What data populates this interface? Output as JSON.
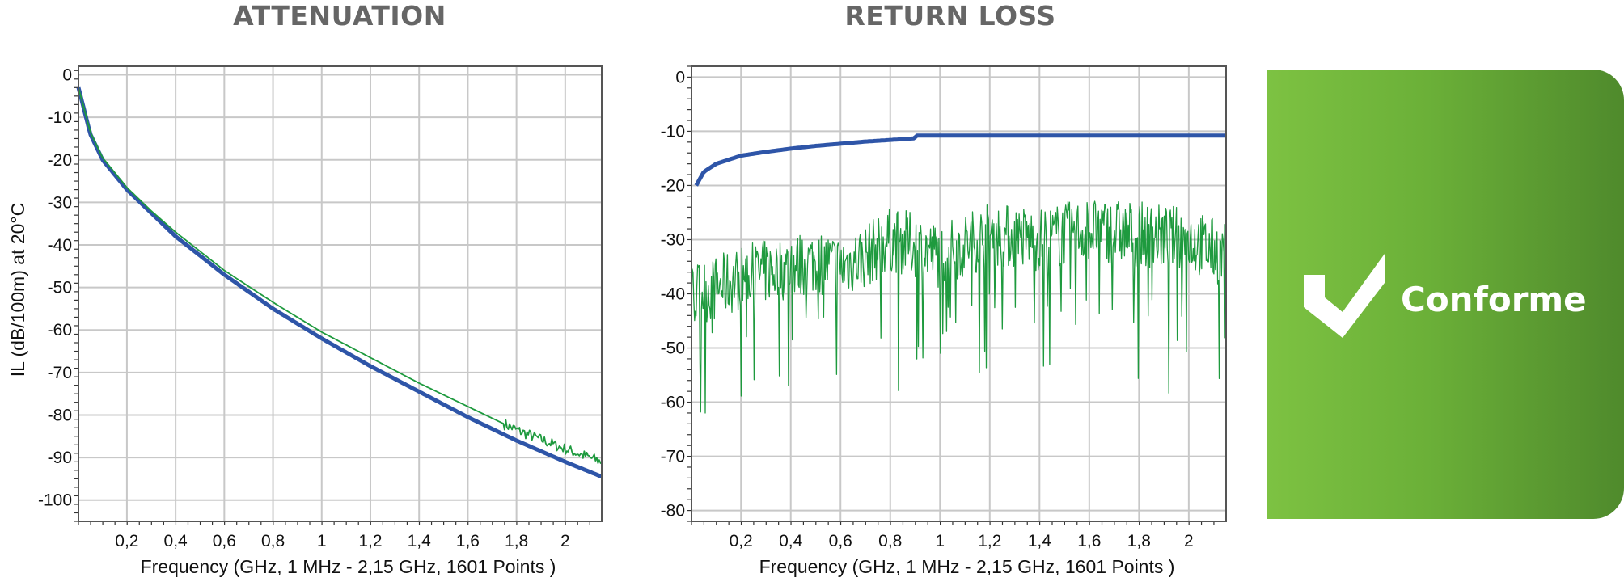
{
  "chart_data": [
    {
      "type": "line",
      "title": "ATTENUATION",
      "xlabel": "Frequency (GHz, 1 MHz - 2,15 GHz, 1601 Points )",
      "ylabel": "IL (dB/100m) at 20°C",
      "xlim": [
        0.001,
        2.15
      ],
      "ylim": [
        -105,
        2
      ],
      "xticks": [
        0.2,
        0.4,
        0.6,
        0.8,
        1,
        1.2,
        1.4,
        1.6,
        1.8,
        2
      ],
      "xtick_labels": [
        "0,2",
        "0,4",
        "0,6",
        "0,8",
        "1",
        "1,2",
        "1,4",
        "1,6",
        "1,8",
        "2"
      ],
      "yticks": [
        0,
        -10,
        -20,
        -30,
        -40,
        -50,
        -60,
        -70,
        -80,
        -90,
        -100
      ],
      "ytick_labels": [
        "0",
        "-10",
        "-20",
        "-30",
        "-40",
        "-50",
        "-60",
        "-70",
        "-80",
        "-90",
        "-100"
      ],
      "grid": true,
      "series": [
        {
          "color": "#2e55a8",
          "style": "thick",
          "x": [
            0.001,
            0.05,
            0.1,
            0.2,
            0.3,
            0.4,
            0.5,
            0.6,
            0.8,
            1.0,
            1.2,
            1.4,
            1.6,
            1.8,
            2.0,
            2.15
          ],
          "y": [
            -3,
            -14,
            -20,
            -27,
            -32.5,
            -38,
            -42.5,
            -47,
            -55,
            -62,
            -68.5,
            -74.5,
            -80.5,
            -86,
            -91,
            -94.5
          ]
        },
        {
          "color": "#1e9a3e",
          "style": "thin",
          "x": [
            0.001,
            0.05,
            0.1,
            0.2,
            0.3,
            0.4,
            0.5,
            0.6,
            0.8,
            1.0,
            1.2,
            1.4,
            1.6,
            1.8,
            2.0,
            2.15
          ],
          "y": [
            -3,
            -13.5,
            -19.5,
            -26.5,
            -32,
            -37,
            -41.5,
            -46,
            -53.5,
            -60.5,
            -66.5,
            -72.5,
            -78,
            -83.5,
            -88,
            -91
          ]
        }
      ]
    },
    {
      "type": "line",
      "title": "RETURN LOSS",
      "xlabel": "Frequency (GHz, 1 MHz - 2,15 GHz, 1601 Points )",
      "ylabel": "",
      "xlim": [
        0.001,
        2.15
      ],
      "ylim": [
        -82,
        2
      ],
      "xticks": [
        0.2,
        0.4,
        0.6,
        0.8,
        1,
        1.2,
        1.4,
        1.6,
        1.8,
        2
      ],
      "xtick_labels": [
        "0,2",
        "0,4",
        "0,6",
        "0,8",
        "1",
        "1,2",
        "1,4",
        "1,6",
        "1,8",
        "2"
      ],
      "yticks": [
        0,
        -10,
        -20,
        -30,
        -40,
        -50,
        -60,
        -70,
        -80
      ],
      "ytick_labels": [
        "0",
        "-10",
        "-20",
        "-30",
        "-40",
        "-50",
        "-60",
        "-70",
        "-80"
      ],
      "grid": true,
      "series": [
        {
          "color": "#2e55a8",
          "style": "thick",
          "x": [
            0.02,
            0.05,
            0.1,
            0.2,
            0.3,
            0.4,
            0.5,
            0.6,
            0.7,
            0.8,
            0.9,
            0.901,
            1.2,
            1.6,
            2.0,
            2.15
          ],
          "y": [
            -20,
            -17.5,
            -16,
            -14.5,
            -13.8,
            -13.2,
            -12.7,
            -12.3,
            -11.9,
            -11.6,
            -11.3,
            -10.8,
            -10.8,
            -10.8,
            -10.8,
            -10.8
          ]
        },
        {
          "color": "#1e9a3e",
          "style": "thin-noisy",
          "x": [
            0.001,
            0.1,
            0.2,
            0.3,
            0.4,
            0.5,
            0.6,
            0.7,
            0.8,
            0.9,
            1.0,
            1.2,
            1.4,
            1.6,
            1.8,
            2.0,
            2.15
          ],
          "y": [
            -40,
            -39,
            -37,
            -36,
            -35,
            -34,
            -35,
            -33,
            -30,
            -31,
            -33,
            -29,
            -30,
            -28,
            -29,
            -30,
            -33
          ]
        }
      ]
    }
  ],
  "badge": {
    "label": "Conforme",
    "icon": "checkmark-icon",
    "color_start": "#7dc242",
    "color_end": "#4f8a2c"
  }
}
